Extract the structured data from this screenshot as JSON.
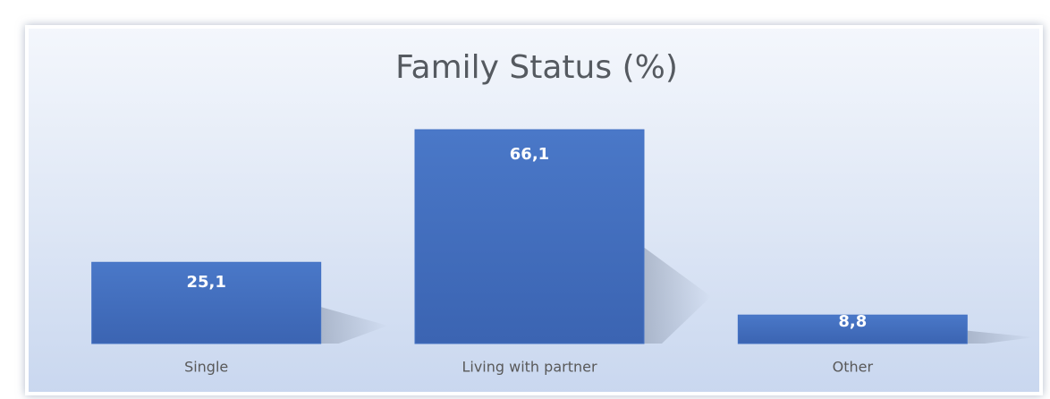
{
  "chart_data": {
    "type": "bar",
    "title": "Family Status (%)",
    "categories": [
      "Single",
      "Living with partner",
      "Other"
    ],
    "values": [
      25.1,
      66.1,
      8.8
    ],
    "value_labels": [
      "25,1",
      "66,1",
      "8,8"
    ],
    "color": "#4472c4"
  }
}
